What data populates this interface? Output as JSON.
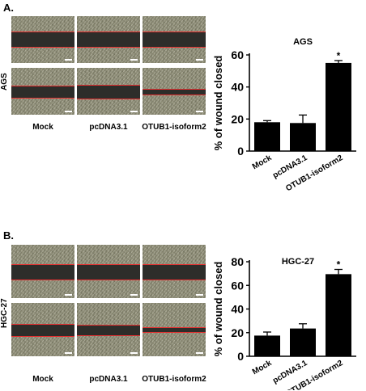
{
  "panel_a": {
    "label": "A.",
    "row_label": "AGS",
    "col_labels": [
      "Mock",
      "pcDNA3.1",
      "OTUB1-isoform2"
    ]
  },
  "panel_b": {
    "label": "B.",
    "row_label": "HGC-27",
    "col_labels": [
      "Mock",
      "pcDNA3.1",
      "OTUB1-isoform2"
    ]
  },
  "chart_data": [
    {
      "type": "bar",
      "title": "AGS",
      "ylabel": "% of wound closed",
      "xlabel": "",
      "categories": [
        "Mock",
        "pcDNA3.1",
        "OTUB1-isoform2"
      ],
      "values": [
        18,
        17.5,
        55
      ],
      "errors": [
        1,
        5,
        1.5
      ],
      "significance": [
        "",
        "",
        "*"
      ],
      "ylim": [
        0,
        60
      ],
      "yticks": [
        0,
        20,
        40,
        60
      ],
      "grid": false,
      "bar_color": "#000000"
    },
    {
      "type": "bar",
      "title": "HGC-27",
      "ylabel": "% of wound closed",
      "xlabel": "",
      "categories": [
        "Mock",
        "pcDNA3.1",
        "OTUB1-isoform2"
      ],
      "values": [
        17.5,
        23.5,
        69.5
      ],
      "errors": [
        3,
        4,
        4
      ],
      "significance": [
        "",
        "",
        "*"
      ],
      "ylim": [
        0,
        80
      ],
      "yticks": [
        0,
        20,
        40,
        60,
        80
      ],
      "grid": false,
      "bar_color": "#000000"
    }
  ]
}
